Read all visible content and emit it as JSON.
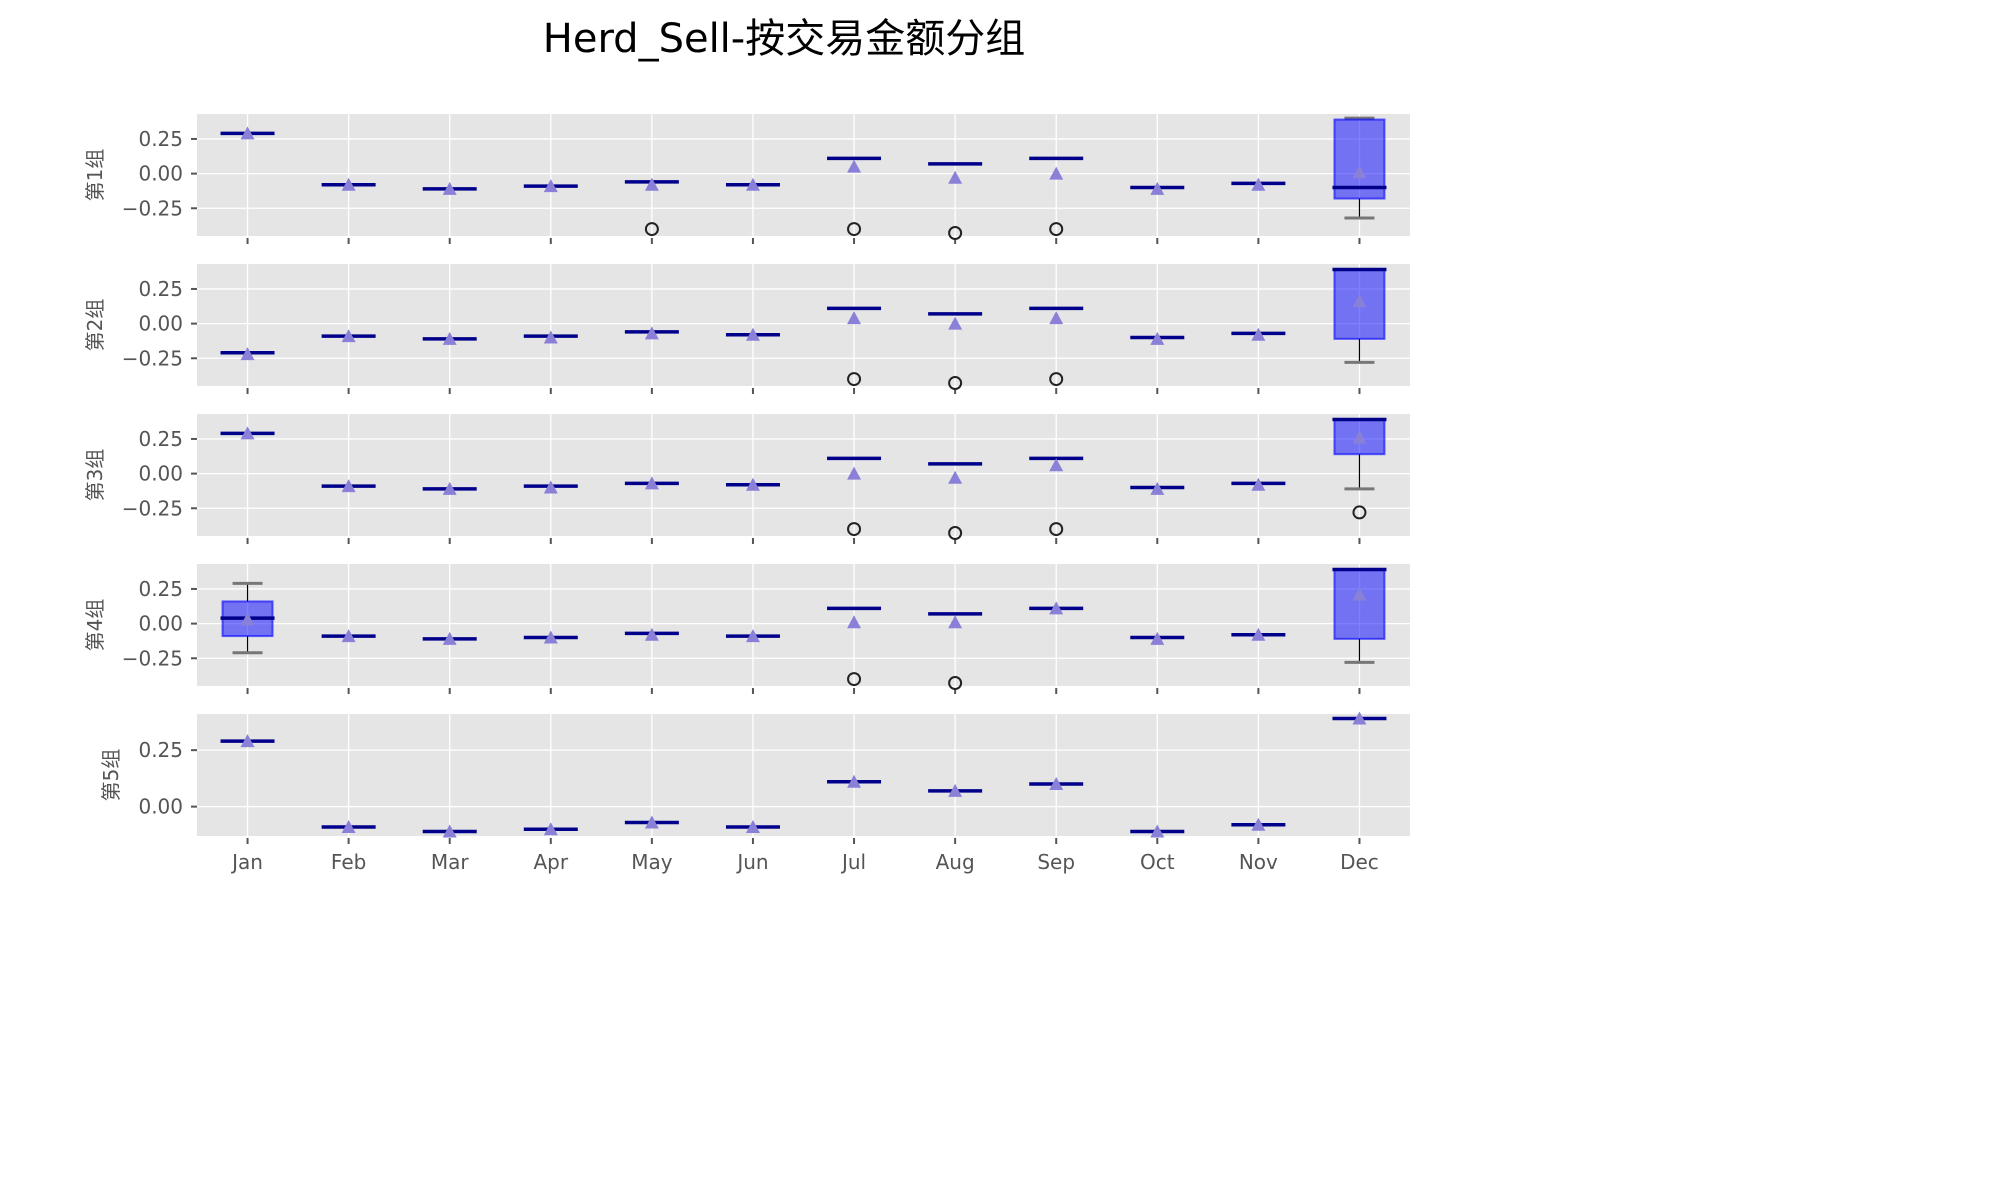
{
  "chart_data": {
    "type": "box",
    "title": "Herd_Sell-按交易金额分组",
    "categories": [
      "Jan",
      "Feb",
      "Mar",
      "Apr",
      "May",
      "Jun",
      "Jul",
      "Aug",
      "Sep",
      "Oct",
      "Nov",
      "Dec"
    ],
    "grid": true,
    "sharex": true,
    "colors": {
      "panel_background": "#e5e5e5",
      "box_fill": "#0000ff",
      "median": "#00008b",
      "mean_marker": "#8a80d8",
      "cap": "#777777"
    },
    "panels": [
      {
        "ylabel": "第1组",
        "ylim": [
          -0.45,
          0.43
        ],
        "yticks": [
          0.25,
          0.0,
          -0.25
        ],
        "ytick_labels": [
          "0.25",
          "0.00",
          "−0.25"
        ],
        "boxes": [
          {
            "q1": 0.29,
            "med": 0.29,
            "q3": 0.29,
            "whislo": 0.29,
            "whishi": 0.29,
            "mean": 0.29,
            "fliers": []
          },
          {
            "q1": -0.08,
            "med": -0.08,
            "q3": -0.08,
            "whislo": -0.08,
            "whishi": -0.08,
            "mean": -0.08,
            "fliers": []
          },
          {
            "q1": -0.11,
            "med": -0.11,
            "q3": -0.11,
            "whislo": -0.11,
            "whishi": -0.11,
            "mean": -0.11,
            "fliers": []
          },
          {
            "q1": -0.09,
            "med": -0.09,
            "q3": -0.09,
            "whislo": -0.09,
            "whishi": -0.09,
            "mean": -0.09,
            "fliers": []
          },
          {
            "q1": -0.06,
            "med": -0.06,
            "q3": -0.06,
            "whislo": -0.06,
            "whishi": -0.06,
            "mean": -0.08,
            "fliers": [
              -0.4
            ]
          },
          {
            "q1": -0.08,
            "med": -0.08,
            "q3": -0.08,
            "whislo": -0.08,
            "whishi": -0.08,
            "mean": -0.08,
            "fliers": []
          },
          {
            "q1": 0.11,
            "med": 0.11,
            "q3": 0.11,
            "whislo": 0.11,
            "whishi": 0.11,
            "mean": 0.05,
            "fliers": [
              -0.4
            ]
          },
          {
            "q1": 0.07,
            "med": 0.07,
            "q3": 0.07,
            "whislo": 0.07,
            "whishi": 0.07,
            "mean": -0.03,
            "fliers": [
              -0.43
            ]
          },
          {
            "q1": 0.11,
            "med": 0.11,
            "q3": 0.11,
            "whislo": 0.11,
            "whishi": 0.11,
            "mean": 0.0,
            "fliers": [
              -0.4
            ]
          },
          {
            "q1": -0.1,
            "med": -0.1,
            "q3": -0.1,
            "whislo": -0.1,
            "whishi": -0.1,
            "mean": -0.11,
            "fliers": []
          },
          {
            "q1": -0.07,
            "med": -0.07,
            "q3": -0.07,
            "whislo": -0.07,
            "whishi": -0.07,
            "mean": -0.08,
            "fliers": []
          },
          {
            "q1": -0.18,
            "med": -0.1,
            "q3": 0.39,
            "whislo": -0.32,
            "whishi": 0.4,
            "mean": 0.01,
            "fliers": []
          }
        ]
      },
      {
        "ylabel": "第2组",
        "ylim": [
          -0.45,
          0.43
        ],
        "yticks": [
          0.25,
          0.0,
          -0.25
        ],
        "ytick_labels": [
          "0.25",
          "0.00",
          "−0.25"
        ],
        "boxes": [
          {
            "q1": -0.21,
            "med": -0.21,
            "q3": -0.21,
            "whislo": -0.21,
            "whishi": -0.21,
            "mean": -0.22,
            "fliers": []
          },
          {
            "q1": -0.09,
            "med": -0.09,
            "q3": -0.09,
            "whislo": -0.09,
            "whishi": -0.09,
            "mean": -0.09,
            "fliers": []
          },
          {
            "q1": -0.11,
            "med": -0.11,
            "q3": -0.11,
            "whislo": -0.11,
            "whishi": -0.11,
            "mean": -0.11,
            "fliers": []
          },
          {
            "q1": -0.09,
            "med": -0.09,
            "q3": -0.09,
            "whislo": -0.09,
            "whishi": -0.09,
            "mean": -0.1,
            "fliers": []
          },
          {
            "q1": -0.06,
            "med": -0.06,
            "q3": -0.06,
            "whislo": -0.06,
            "whishi": -0.06,
            "mean": -0.07,
            "fliers": []
          },
          {
            "q1": -0.08,
            "med": -0.08,
            "q3": -0.08,
            "whislo": -0.08,
            "whishi": -0.08,
            "mean": -0.08,
            "fliers": []
          },
          {
            "q1": 0.11,
            "med": 0.11,
            "q3": 0.11,
            "whislo": 0.11,
            "whishi": 0.11,
            "mean": 0.04,
            "fliers": [
              -0.4
            ]
          },
          {
            "q1": 0.07,
            "med": 0.07,
            "q3": 0.07,
            "whislo": 0.07,
            "whishi": 0.07,
            "mean": 0.0,
            "fliers": [
              -0.43
            ]
          },
          {
            "q1": 0.11,
            "med": 0.11,
            "q3": 0.11,
            "whislo": 0.11,
            "whishi": 0.11,
            "mean": 0.04,
            "fliers": [
              -0.4
            ]
          },
          {
            "q1": -0.1,
            "med": -0.1,
            "q3": -0.1,
            "whislo": -0.1,
            "whishi": -0.1,
            "mean": -0.11,
            "fliers": []
          },
          {
            "q1": -0.07,
            "med": -0.07,
            "q3": -0.07,
            "whislo": -0.07,
            "whishi": -0.07,
            "mean": -0.08,
            "fliers": []
          },
          {
            "q1": -0.11,
            "med": 0.39,
            "q3": 0.39,
            "whislo": -0.28,
            "whishi": 0.39,
            "mean": 0.16,
            "fliers": []
          }
        ]
      },
      {
        "ylabel": "第3组",
        "ylim": [
          -0.45,
          0.43
        ],
        "yticks": [
          0.25,
          0.0,
          -0.25
        ],
        "ytick_labels": [
          "0.25",
          "0.00",
          "−0.25"
        ],
        "boxes": [
          {
            "q1": 0.29,
            "med": 0.29,
            "q3": 0.29,
            "whislo": 0.29,
            "whishi": 0.29,
            "mean": 0.29,
            "fliers": []
          },
          {
            "q1": -0.09,
            "med": -0.09,
            "q3": -0.09,
            "whislo": -0.09,
            "whishi": -0.09,
            "mean": -0.09,
            "fliers": []
          },
          {
            "q1": -0.11,
            "med": -0.11,
            "q3": -0.11,
            "whislo": -0.11,
            "whishi": -0.11,
            "mean": -0.11,
            "fliers": []
          },
          {
            "q1": -0.09,
            "med": -0.09,
            "q3": -0.09,
            "whislo": -0.09,
            "whishi": -0.09,
            "mean": -0.1,
            "fliers": []
          },
          {
            "q1": -0.07,
            "med": -0.07,
            "q3": -0.07,
            "whislo": -0.07,
            "whishi": -0.07,
            "mean": -0.07,
            "fliers": []
          },
          {
            "q1": -0.08,
            "med": -0.08,
            "q3": -0.08,
            "whislo": -0.08,
            "whishi": -0.08,
            "mean": -0.08,
            "fliers": []
          },
          {
            "q1": 0.11,
            "med": 0.11,
            "q3": 0.11,
            "whislo": 0.11,
            "whishi": 0.11,
            "mean": 0.0,
            "fliers": [
              -0.4
            ]
          },
          {
            "q1": 0.07,
            "med": 0.07,
            "q3": 0.07,
            "whislo": 0.07,
            "whishi": 0.07,
            "mean": -0.03,
            "fliers": [
              -0.43
            ]
          },
          {
            "q1": 0.11,
            "med": 0.11,
            "q3": 0.11,
            "whislo": 0.11,
            "whishi": 0.11,
            "mean": 0.06,
            "fliers": [
              -0.4
            ]
          },
          {
            "q1": -0.1,
            "med": -0.1,
            "q3": -0.1,
            "whislo": -0.1,
            "whishi": -0.1,
            "mean": -0.11,
            "fliers": []
          },
          {
            "q1": -0.07,
            "med": -0.07,
            "q3": -0.07,
            "whislo": -0.07,
            "whishi": -0.07,
            "mean": -0.08,
            "fliers": []
          },
          {
            "q1": 0.14,
            "med": 0.39,
            "q3": 0.39,
            "whislo": -0.11,
            "whishi": 0.39,
            "mean": 0.26,
            "fliers": [
              -0.28
            ]
          }
        ]
      },
      {
        "ylabel": "第4组",
        "ylim": [
          -0.45,
          0.43
        ],
        "yticks": [
          0.25,
          0.0,
          -0.25
        ],
        "ytick_labels": [
          "0.25",
          "0.00",
          "−0.25"
        ],
        "boxes": [
          {
            "q1": -0.09,
            "med": 0.04,
            "q3": 0.16,
            "whislo": -0.21,
            "whishi": 0.29,
            "mean": 0.03,
            "fliers": []
          },
          {
            "q1": -0.09,
            "med": -0.09,
            "q3": -0.09,
            "whislo": -0.09,
            "whishi": -0.09,
            "mean": -0.09,
            "fliers": []
          },
          {
            "q1": -0.11,
            "med": -0.11,
            "q3": -0.11,
            "whislo": -0.11,
            "whishi": -0.11,
            "mean": -0.11,
            "fliers": []
          },
          {
            "q1": -0.1,
            "med": -0.1,
            "q3": -0.1,
            "whislo": -0.1,
            "whishi": -0.1,
            "mean": -0.1,
            "fliers": []
          },
          {
            "q1": -0.07,
            "med": -0.07,
            "q3": -0.07,
            "whislo": -0.07,
            "whishi": -0.07,
            "mean": -0.08,
            "fliers": []
          },
          {
            "q1": -0.09,
            "med": -0.09,
            "q3": -0.09,
            "whislo": -0.09,
            "whishi": -0.09,
            "mean": -0.09,
            "fliers": []
          },
          {
            "q1": 0.11,
            "med": 0.11,
            "q3": 0.11,
            "whislo": 0.11,
            "whishi": 0.11,
            "mean": 0.01,
            "fliers": [
              -0.4
            ]
          },
          {
            "q1": 0.07,
            "med": 0.07,
            "q3": 0.07,
            "whislo": 0.07,
            "whishi": 0.07,
            "mean": 0.01,
            "fliers": [
              -0.44
            ]
          },
          {
            "q1": 0.11,
            "med": 0.11,
            "q3": 0.11,
            "whislo": 0.11,
            "whishi": 0.11,
            "mean": 0.11,
            "fliers": []
          },
          {
            "q1": -0.1,
            "med": -0.1,
            "q3": -0.1,
            "whislo": -0.1,
            "whishi": -0.1,
            "mean": -0.11,
            "fliers": []
          },
          {
            "q1": -0.08,
            "med": -0.08,
            "q3": -0.08,
            "whislo": -0.08,
            "whishi": -0.08,
            "mean": -0.08,
            "fliers": []
          },
          {
            "q1": -0.11,
            "med": 0.39,
            "q3": 0.39,
            "whislo": -0.28,
            "whishi": 0.39,
            "mean": 0.21,
            "fliers": []
          }
        ]
      },
      {
        "ylabel": "第5组",
        "ylim": [
          -0.13,
          0.41
        ],
        "yticks": [
          0.25,
          0.0
        ],
        "ytick_labels": [
          "0.25",
          "0.00"
        ],
        "boxes": [
          {
            "q1": 0.29,
            "med": 0.29,
            "q3": 0.29,
            "whislo": 0.29,
            "whishi": 0.29,
            "mean": 0.29,
            "fliers": []
          },
          {
            "q1": -0.09,
            "med": -0.09,
            "q3": -0.09,
            "whislo": -0.09,
            "whishi": -0.09,
            "mean": -0.09,
            "fliers": []
          },
          {
            "q1": -0.11,
            "med": -0.11,
            "q3": -0.11,
            "whislo": -0.11,
            "whishi": -0.11,
            "mean": -0.11,
            "fliers": []
          },
          {
            "q1": -0.1,
            "med": -0.1,
            "q3": -0.1,
            "whislo": -0.1,
            "whishi": -0.1,
            "mean": -0.1,
            "fliers": []
          },
          {
            "q1": -0.07,
            "med": -0.07,
            "q3": -0.07,
            "whislo": -0.07,
            "whishi": -0.07,
            "mean": -0.07,
            "fliers": []
          },
          {
            "q1": -0.09,
            "med": -0.09,
            "q3": -0.09,
            "whislo": -0.09,
            "whishi": -0.09,
            "mean": -0.09,
            "fliers": []
          },
          {
            "q1": 0.11,
            "med": 0.11,
            "q3": 0.11,
            "whislo": 0.11,
            "whishi": 0.11,
            "mean": 0.11,
            "fliers": []
          },
          {
            "q1": 0.07,
            "med": 0.07,
            "q3": 0.07,
            "whislo": 0.07,
            "whishi": 0.07,
            "mean": 0.07,
            "fliers": []
          },
          {
            "q1": 0.1,
            "med": 0.1,
            "q3": 0.1,
            "whislo": 0.1,
            "whishi": 0.1,
            "mean": 0.1,
            "fliers": []
          },
          {
            "q1": -0.11,
            "med": -0.11,
            "q3": -0.11,
            "whislo": -0.11,
            "whishi": -0.11,
            "mean": -0.11,
            "fliers": []
          },
          {
            "q1": -0.08,
            "med": -0.08,
            "q3": -0.08,
            "whislo": -0.08,
            "whishi": -0.08,
            "mean": -0.08,
            "fliers": []
          },
          {
            "q1": 0.39,
            "med": 0.39,
            "q3": 0.39,
            "whislo": 0.39,
            "whishi": 0.39,
            "mean": 0.39,
            "fliers": []
          }
        ]
      }
    ]
  }
}
